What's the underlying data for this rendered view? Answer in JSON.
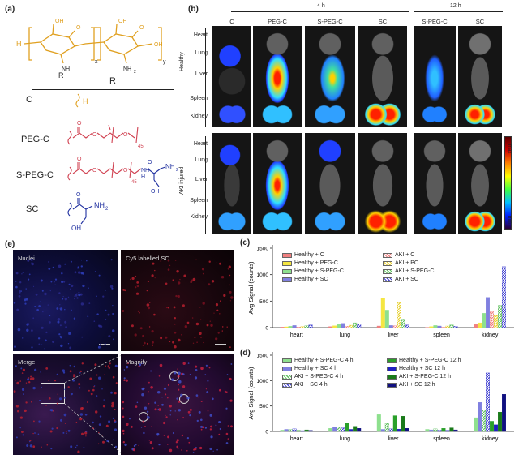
{
  "panels": {
    "a": "(a)",
    "b": "(b)",
    "c": "(c)",
    "d": "(d)",
    "e": "(e)"
  },
  "chem": {
    "r_header": "R",
    "r_sub": "R",
    "x": "x",
    "y": "y",
    "h_left": "H",
    "oh1": "OH",
    "oh2": "OH",
    "o1": "O",
    "o2": "O",
    "oh3": "OH",
    "nh": "NH",
    "nh2": "NH",
    "nh2_sub": "2",
    "rows": [
      {
        "name": "C",
        "group": "H"
      },
      {
        "name": "PEG-C",
        "group": "45"
      },
      {
        "name": "S-PEG-C",
        "group": "45"
      },
      {
        "name": "SC",
        "group": "NH2"
      }
    ],
    "peg_n": "45",
    "speg_n": "45",
    "speg_nh2": "NH",
    "speg_nh2_sub": "2",
    "speg_h": "H",
    "speg_oh": "OH",
    "sc_nh2": "NH",
    "sc_nh2_sub": "2",
    "sc_oh": "OH",
    "o_labels": "O"
  },
  "imaging": {
    "time_4h": "4 h",
    "time_12h": "12 h",
    "columns": [
      "C",
      "PEG-C",
      "S-PEG-C",
      "SC",
      "S-PEG-C",
      "SC"
    ],
    "organs": [
      "Heart",
      "Lung",
      "Liver",
      "Spleen",
      "Kidney"
    ],
    "group_healthy": "Healthy",
    "group_aki": "AKI injured",
    "scale_max": "max",
    "scale_min": "min"
  },
  "micro": {
    "nuclei": "Nuclei",
    "cy5": "Cy5 labelled SC",
    "merge": "Merge",
    "magnify": "Magnify"
  },
  "chart_data": [
    {
      "type": "bar",
      "panel": "c",
      "ylabel": "Avg Signal (counts)",
      "ylim": [
        0,
        1500
      ],
      "yticks": [
        0,
        500,
        1000,
        1500
      ],
      "categories": [
        "heart",
        "lung",
        "liver",
        "spleen",
        "kidney"
      ],
      "series": [
        {
          "name": "Healthy + C",
          "color": "#f08080",
          "pattern": "solid",
          "values": [
            10,
            20,
            30,
            5,
            60
          ]
        },
        {
          "name": "Healthy + PEG-C",
          "color": "#f5e642",
          "pattern": "solid",
          "values": [
            15,
            35,
            560,
            20,
            90
          ]
        },
        {
          "name": "Healthy + S-PEG-C",
          "color": "#8ee08e",
          "pattern": "solid",
          "values": [
            25,
            60,
            330,
            40,
            270
          ]
        },
        {
          "name": "Healthy + SC",
          "color": "#8080e0",
          "pattern": "solid",
          "values": [
            40,
            80,
            40,
            30,
            570
          ]
        },
        {
          "name": "AKI + C",
          "color": "#f08080",
          "pattern": "hatch",
          "values": [
            12,
            25,
            35,
            8,
            300
          ]
        },
        {
          "name": "AKI + PC",
          "color": "#e8d030",
          "pattern": "hatch",
          "values": [
            20,
            45,
            470,
            30,
            230
          ]
        },
        {
          "name": "AKI + S-PEG-C",
          "color": "#60c060",
          "pattern": "hatch",
          "values": [
            35,
            90,
            160,
            50,
            420
          ]
        },
        {
          "name": "AKI + SC",
          "color": "#4040d0",
          "pattern": "hatch",
          "values": [
            50,
            70,
            50,
            25,
            1150
          ]
        }
      ]
    },
    {
      "type": "bar",
      "panel": "d",
      "ylabel": "Avg Signal (counts)",
      "ylim": [
        0,
        1500
      ],
      "yticks": [
        0,
        500,
        1000,
        1500
      ],
      "categories": [
        "heart",
        "lung",
        "liver",
        "spleen",
        "kidney"
      ],
      "series": [
        {
          "name": "Healthy + S-PEG-C 4 h",
          "color": "#8ee08e",
          "pattern": "solid",
          "values": [
            25,
            60,
            330,
            40,
            270
          ]
        },
        {
          "name": "Healthy + SC 4 h",
          "color": "#8080e0",
          "pattern": "solid",
          "values": [
            40,
            80,
            40,
            30,
            570
          ]
        },
        {
          "name": "AKI + S-PEG-C 4 h",
          "color": "#60c060",
          "pattern": "hatch",
          "values": [
            35,
            90,
            160,
            50,
            420
          ]
        },
        {
          "name": "AKI + SC 4 h",
          "color": "#4040d0",
          "pattern": "hatch",
          "values": [
            50,
            70,
            50,
            25,
            1150
          ]
        },
        {
          "name": "Healthy + S-PEG-C 12 h",
          "color": "#2aa02a",
          "pattern": "solid",
          "values": [
            20,
            170,
            310,
            60,
            200
          ]
        },
        {
          "name": "Healthy + SC 12 h",
          "color": "#2020c0",
          "pattern": "solid",
          "values": [
            15,
            40,
            45,
            20,
            130
          ]
        },
        {
          "name": "AKI + S-PEG-C 12 h",
          "color": "#1a7a1a",
          "pattern": "solid",
          "values": [
            30,
            100,
            300,
            70,
            380
          ]
        },
        {
          "name": "AKI + SC 12 h",
          "color": "#101080",
          "pattern": "solid",
          "values": [
            20,
            60,
            60,
            30,
            730
          ]
        }
      ]
    }
  ],
  "colors": {
    "chem_orange": "#e0a020",
    "chem_red": "#d04050",
    "chem_blue": "#2030a0"
  }
}
